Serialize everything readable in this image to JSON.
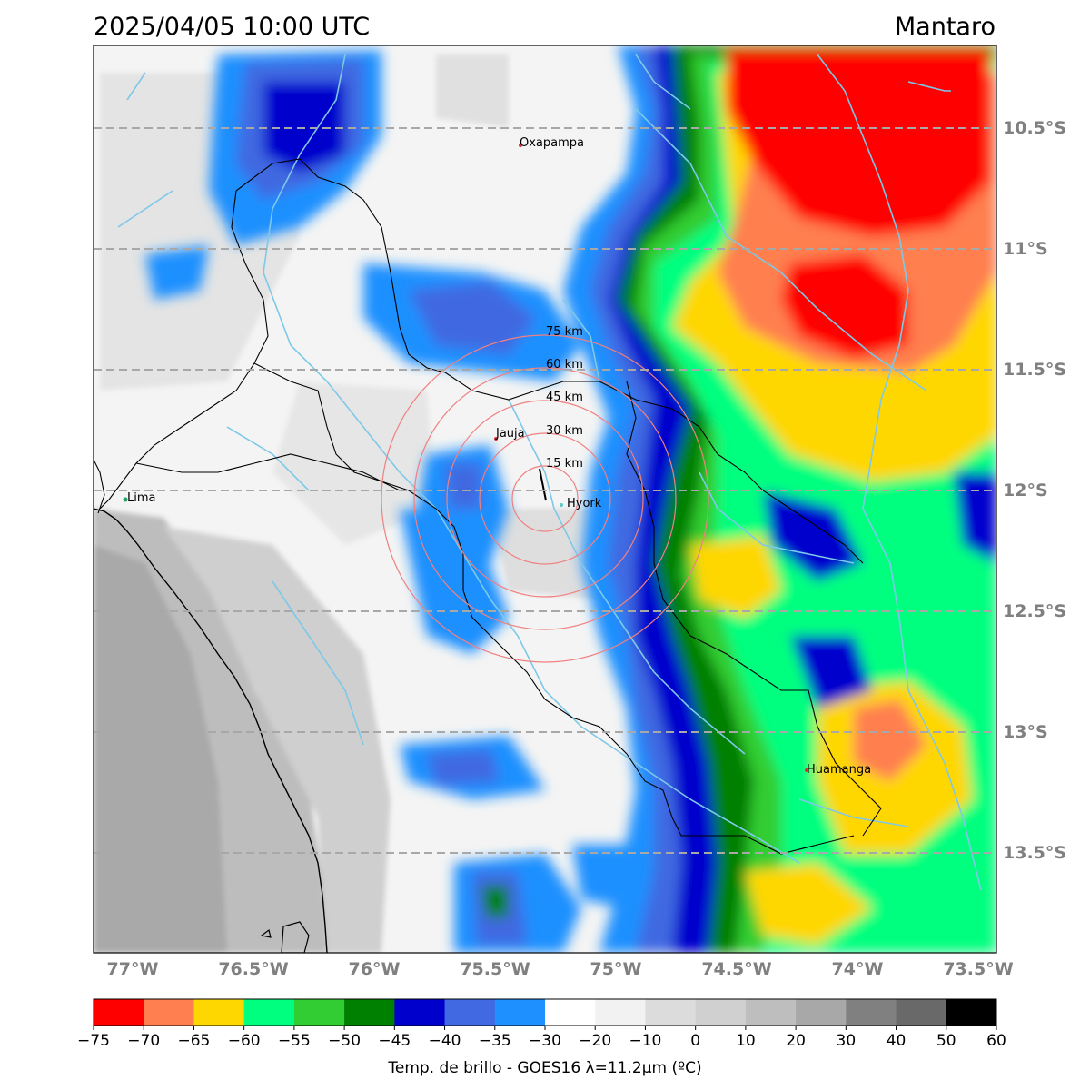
{
  "header": {
    "timestamp": "2025/04/05 10:00 UTC",
    "region": "Mantaro"
  },
  "map": {
    "lat_ticks": [
      "10.5°S",
      "11°S",
      "11.5°S",
      "12°S",
      "12.5°S",
      "13°S",
      "13.5°S"
    ],
    "lon_ticks": [
      "77°W",
      "76.5°W",
      "76°W",
      "75.5°W",
      "75°W",
      "74.5°W",
      "74°W",
      "73.5°W"
    ],
    "cities": [
      {
        "name": "Oxapampa",
        "lon": -75.39,
        "lat": -10.58,
        "marker_color": "#e03030"
      },
      {
        "name": "Jauja",
        "lon": -75.5,
        "lat": -11.78,
        "marker_color": "#e03030"
      },
      {
        "name": "Hyork",
        "lon": -75.32,
        "lat": -12.04,
        "marker_color": "#60c8c8"
      },
      {
        "name": "Lima",
        "lon": -77.03,
        "lat": -12.05,
        "marker_color": "#20a060"
      },
      {
        "name": "Huamanga",
        "lon": -74.22,
        "lat": -13.16,
        "marker_color": "#e03030"
      }
    ],
    "rings": {
      "center_lon": -75.32,
      "center_lat": -12.04,
      "labels": [
        "15 km",
        "30 km",
        "45 km",
        "60 km",
        "75 km"
      ],
      "color": "#f08080"
    }
  },
  "colorbar": {
    "title": "Temp. de brillo - GOES16 λ=11.2μm (ºC)",
    "ticks": [
      "−75",
      "−70",
      "−65",
      "−60",
      "−55",
      "−50",
      "−45",
      "−40",
      "−35",
      "−30",
      "−20",
      "−10",
      "0",
      "10",
      "20",
      "30",
      "40",
      "50",
      "60"
    ],
    "colors": [
      "#ff0000",
      "#ff7f50",
      "#ffd700",
      "#00ff7f",
      "#32cd32",
      "#008000",
      "#0000cd",
      "#4169e1",
      "#1e90ff",
      "#ffffff",
      "#f2f2f2",
      "#dcdcdc",
      "#d0d0d0",
      "#bebebe",
      "#a8a8a8",
      "#808080",
      "#696969",
      "#000000"
    ]
  }
}
